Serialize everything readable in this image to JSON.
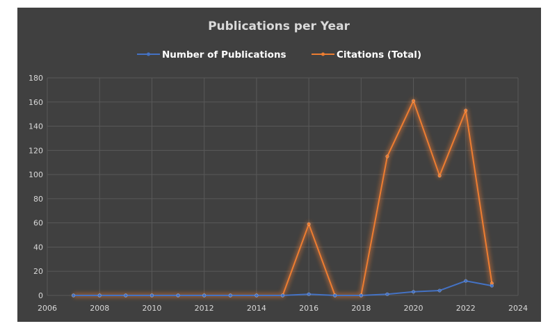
{
  "chart_data": {
    "type": "line",
    "title": "Publications per Year",
    "xlabel": "",
    "ylabel": "",
    "xlim": [
      2006,
      2024
    ],
    "ylim": [
      0,
      180
    ],
    "x_ticks": [
      "2006",
      "2008",
      "2010",
      "2012",
      "2014",
      "2016",
      "2018",
      "2020",
      "2022",
      "2024"
    ],
    "y_ticks": [
      "0",
      "20",
      "40",
      "60",
      "80",
      "100",
      "120",
      "140",
      "160",
      "180"
    ],
    "grid": true,
    "legend_position": "top",
    "series": [
      {
        "name": "Number of Publications",
        "color": "#4472c4",
        "x": [
          2007,
          2008,
          2009,
          2010,
          2011,
          2012,
          2013,
          2014,
          2015,
          2016,
          2017,
          2018,
          2019,
          2020,
          2021,
          2022,
          2023
        ],
        "values": [
          0,
          0,
          0,
          0,
          0,
          0,
          0,
          0,
          0,
          1,
          0,
          0,
          1,
          3,
          4,
          12,
          8
        ]
      },
      {
        "name": "Citations (Total)",
        "color": "#ed7d31",
        "x": [
          2007,
          2008,
          2009,
          2010,
          2011,
          2012,
          2013,
          2014,
          2015,
          2016,
          2017,
          2018,
          2019,
          2020,
          2021,
          2022,
          2023
        ],
        "values": [
          0,
          0,
          0,
          0,
          0,
          0,
          0,
          0,
          0,
          59,
          0,
          0,
          115,
          161,
          99,
          153,
          10
        ]
      }
    ]
  }
}
